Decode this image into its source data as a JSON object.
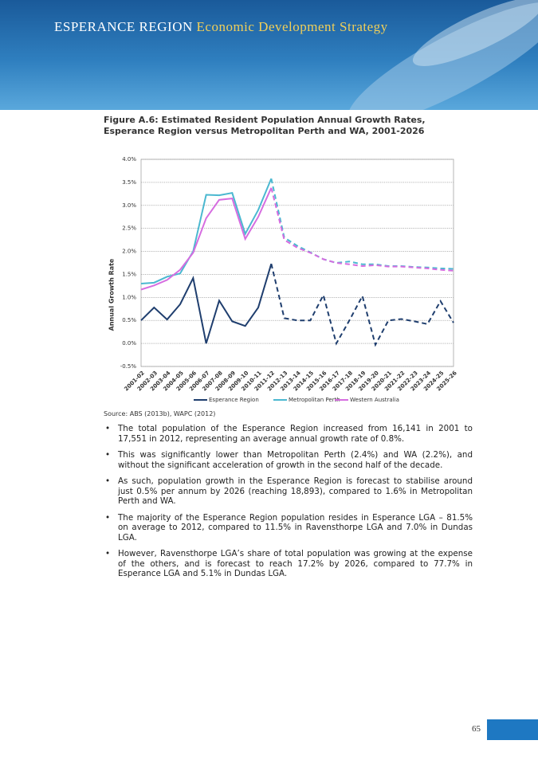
{
  "header": {
    "title_main": "ESPERANCE REGION",
    "title_sub": "Economic Development Strategy"
  },
  "figure": {
    "caption": "Figure A.6: Estimated Resident Population Annual Growth Rates, Esperance Region versus Metropolitan Perth and WA, 2001-2026"
  },
  "chart_data": {
    "type": "line",
    "ylabel": "Annual Growth Rate",
    "categories": [
      "2001-02",
      "2002-03",
      "2003-04",
      "2004-05",
      "2005-06",
      "2006-07",
      "2007-08",
      "2008-09",
      "2009-10",
      "2010-11",
      "2011-12",
      "2012-13",
      "2013-14",
      "2014-15",
      "2015-16",
      "2016-17",
      "2017-18",
      "2018-19",
      "2019-20",
      "2020-21",
      "2021-22",
      "2022-23",
      "2023-24",
      "2024-25",
      "2025-26"
    ],
    "series": [
      {
        "name": "Esperance Region",
        "color": "#1f3e6e",
        "values": [
          0.5,
          0.78,
          0.52,
          0.85,
          1.42,
          0.0,
          0.93,
          0.48,
          0.38,
          0.78,
          1.73,
          0.55,
          0.5,
          0.5,
          1.05,
          0.0,
          0.5,
          1.03,
          -0.03,
          0.5,
          0.53,
          0.48,
          0.42,
          0.92,
          0.45
        ]
      },
      {
        "name": "Metropolitan Perth",
        "color": "#4bb8d0",
        "values": [
          1.3,
          1.32,
          1.45,
          1.52,
          2.0,
          3.23,
          3.22,
          3.27,
          2.38,
          2.9,
          3.58,
          2.3,
          2.12,
          1.98,
          1.83,
          1.75,
          1.78,
          1.72,
          1.72,
          1.68,
          1.68,
          1.66,
          1.65,
          1.63,
          1.62
        ]
      },
      {
        "name": "Western Australia",
        "color": "#d66de0",
        "values": [
          1.17,
          1.26,
          1.38,
          1.6,
          1.97,
          2.72,
          3.12,
          3.15,
          2.27,
          2.75,
          3.38,
          2.25,
          2.08,
          1.97,
          1.83,
          1.75,
          1.72,
          1.68,
          1.7,
          1.67,
          1.67,
          1.65,
          1.63,
          1.6,
          1.58
        ]
      }
    ],
    "dashed_from": 10,
    "ylim": [
      -0.5,
      4.0
    ],
    "yticks": [
      {
        "value": -0.5,
        "label": "-0.5%"
      },
      {
        "value": 0,
        "label": "0.0%"
      },
      {
        "value": 0.5,
        "label": "0.5%"
      },
      {
        "value": 1.0,
        "label": "1.0%"
      },
      {
        "value": 1.5,
        "label": "1.5%"
      },
      {
        "value": 2.0,
        "label": "2.0%"
      },
      {
        "value": 2.5,
        "label": "2.5%"
      },
      {
        "value": 3.0,
        "label": "3.0%"
      },
      {
        "value": 3.5,
        "label": "3.5%"
      },
      {
        "value": 4.0,
        "label": "4.0%"
      }
    ],
    "grid": true,
    "legend": "bottom"
  },
  "source": "Source: ABS (2013b), WAPC (2012)",
  "bullets": [
    "The total population of the Esperance Region increased from 16,141 in 2001 to 17,551 in 2012, representing an average annual growth rate of 0.8%.",
    "This was significantly lower than Metropolitan Perth (2.4%) and WA (2.2%), and without the significant acceleration of growth in the second half of the decade.",
    "As such, population growth in the Esperance Region is forecast to stabilise around just 0.5% per annum by 2026 (reaching 18,893), compared to 1.6% in Metropolitan Perth and WA.",
    "The majority of the Esperance Region population resides in Esperance LGA – 81.5% on average to 2012, compared to 11.5% in Ravensthorpe LGA and 7.0% in Dundas LGA.",
    "However, Ravensthorpe LGA’s share of total population was growing at the expense of the others, and is forecast to reach 17.2% by 2026, compared to 77.7% in Esperance LGA and 5.1% in Dundas LGA."
  ],
  "page_number": "65"
}
